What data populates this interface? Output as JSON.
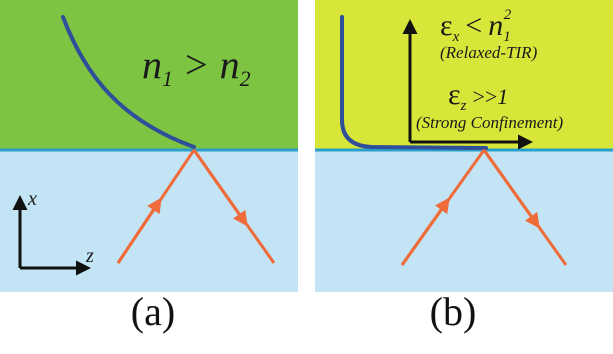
{
  "colors": {
    "top_medium_a": "#7dc443",
    "top_medium_b": "#d8e63a",
    "bottom_medium": "#c2e4f5",
    "interface": "#2a9fc9",
    "ray": "#f06b3a",
    "field_profile": "#2f4f9a",
    "axis": "#111111"
  },
  "panel_a": {
    "relation": {
      "n1": "n",
      "n1_sub": "1",
      "op": ">",
      "n2": "n",
      "n2_sub": "2"
    },
    "axes": {
      "x": "x",
      "z": "z"
    },
    "caption": "(a)"
  },
  "panel_b": {
    "eps_x": {
      "eps": "ε",
      "sub": "x",
      "op": "<",
      "n": "n",
      "n_sub": "1",
      "n_sup": "2"
    },
    "eps_x_note": "(Relaxed-TIR)",
    "eps_z": {
      "eps": "ε",
      "sub": "z",
      "op": ">>",
      "val": "1"
    },
    "eps_z_note": "(Strong Confinement)",
    "caption": "(b)"
  }
}
